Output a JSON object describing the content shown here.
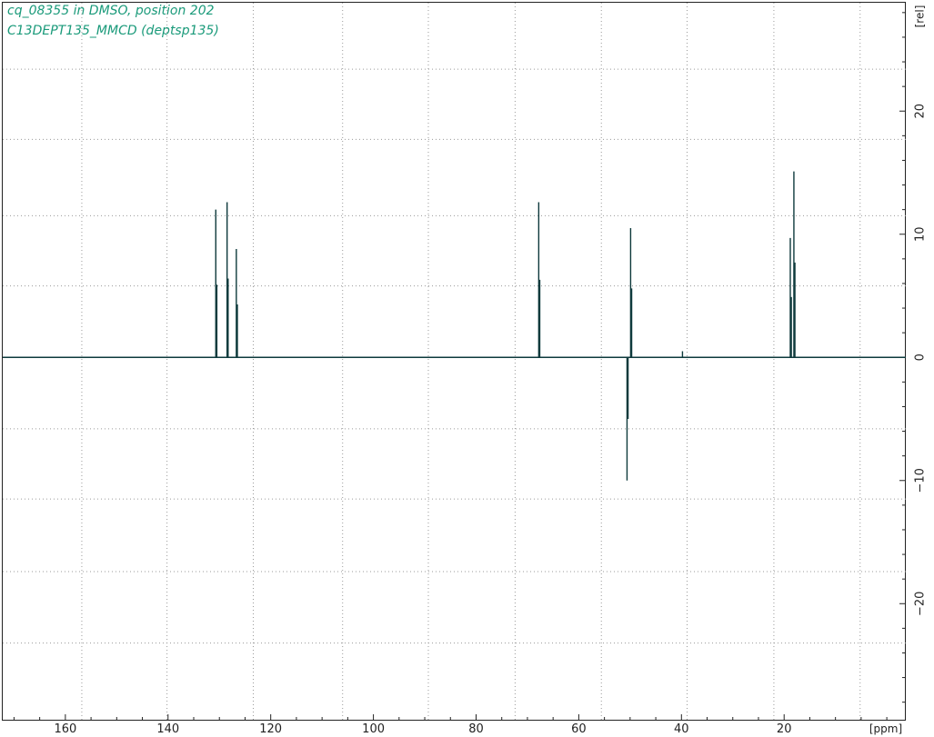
{
  "header": {
    "line1": "cq_08355 in DMSO, position 202",
    "line2": "C13DEPT135_MMCD (deptsp135)"
  },
  "colors": {
    "trace": "#0e3a3c",
    "title": "#1a9a7a",
    "grid": "#9a9a9a",
    "axis": "#222222"
  },
  "chart_data": {
    "type": "line",
    "xlabel": "[ppm]",
    "ylabel": "[rel]",
    "xlim": [
      172,
      154
    ],
    "xlim_note": "",
    "x_reversed": true,
    "x_range": [
      172.2,
      -3.7
    ],
    "ylim": [
      -29.5,
      28.8
    ],
    "x_ticks": [
      160,
      140,
      120,
      100,
      80,
      60,
      40,
      20
    ],
    "x_tick_labels": [
      "160",
      "140",
      "120",
      "100",
      "80",
      "60",
      "40",
      "20"
    ],
    "y_ticks": [
      20,
      10,
      0,
      -10,
      -20
    ],
    "y_tick_labels": [
      "20",
      "10",
      "0",
      "−10",
      "−20"
    ],
    "grid": true,
    "baseline": 0,
    "peaks": [
      {
        "ppm": 130.7,
        "intensity": 12.0
      },
      {
        "ppm": 130.5,
        "intensity": 5.9
      },
      {
        "ppm": 128.5,
        "intensity": 12.6
      },
      {
        "ppm": 128.3,
        "intensity": 6.4
      },
      {
        "ppm": 126.7,
        "intensity": 8.8
      },
      {
        "ppm": 126.5,
        "intensity": 4.3
      },
      {
        "ppm": 67.8,
        "intensity": 12.6
      },
      {
        "ppm": 67.6,
        "intensity": 6.3
      },
      {
        "ppm": 50.6,
        "intensity": -10.0
      },
      {
        "ppm": 50.4,
        "intensity": -5.0
      },
      {
        "ppm": 49.9,
        "intensity": 10.5
      },
      {
        "ppm": 49.7,
        "intensity": 5.6
      },
      {
        "ppm": 39.8,
        "intensity": 0.5
      },
      {
        "ppm": 18.8,
        "intensity": 9.7
      },
      {
        "ppm": 18.6,
        "intensity": 4.9
      },
      {
        "ppm": 18.1,
        "intensity": 15.1
      },
      {
        "ppm": 17.9,
        "intensity": 7.7
      }
    ]
  }
}
